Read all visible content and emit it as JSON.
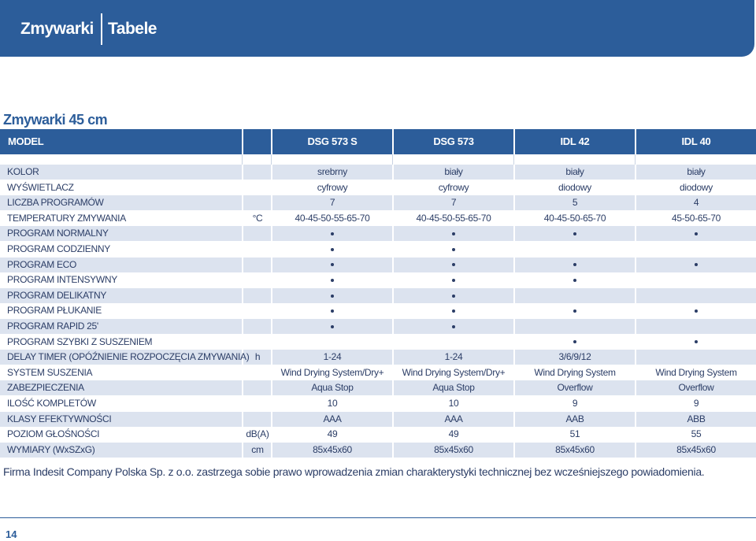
{
  "header": {
    "title_left": "Zmywarki",
    "title_right": "Tabele"
  },
  "section_title": "Zmywarki 45 cm",
  "table": {
    "columns": [
      "MODEL",
      "DSG 573 S",
      "DSG 573",
      "IDL 42",
      "IDL 40"
    ],
    "rows": [
      {
        "label": "KOLOR",
        "unit": "",
        "values": [
          "srebrny",
          "biały",
          "biały",
          "biały"
        ]
      },
      {
        "label": "WYŚWIETLACZ",
        "unit": "",
        "values": [
          "cyfrowy",
          "cyfrowy",
          "diodowy",
          "diodowy"
        ]
      },
      {
        "label": "LICZBA PROGRAMÓW",
        "unit": "",
        "values": [
          "7",
          "7",
          "5",
          "4"
        ]
      },
      {
        "label": "TEMPERATURY ZMYWANIA",
        "unit": "°C",
        "values": [
          "40-45-50-55-65-70",
          "40-45-50-55-65-70",
          "40-45-50-65-70",
          "45-50-65-70"
        ]
      },
      {
        "label": "PROGRAM NORMALNY",
        "unit": "",
        "values": [
          "•",
          "•",
          "•",
          "•"
        ]
      },
      {
        "label": "PROGRAM CODZIENNY",
        "unit": "",
        "values": [
          "•",
          "•",
          "",
          ""
        ]
      },
      {
        "label": "PROGRAM ECO",
        "unit": "",
        "values": [
          "•",
          "•",
          "•",
          "•"
        ]
      },
      {
        "label": "PROGRAM INTENSYWNY",
        "unit": "",
        "values": [
          "•",
          "•",
          "•",
          ""
        ]
      },
      {
        "label": "PROGRAM DELIKATNY",
        "unit": "",
        "values": [
          "•",
          "•",
          "",
          ""
        ]
      },
      {
        "label": "PROGRAM PŁUKANIE",
        "unit": "",
        "values": [
          "•",
          "•",
          "•",
          "•"
        ]
      },
      {
        "label": "PROGRAM RAPID 25'",
        "unit": "",
        "values": [
          "•",
          "•",
          "",
          ""
        ]
      },
      {
        "label": "PROGRAM SZYBKI Z SUSZENIEM",
        "unit": "",
        "values": [
          "",
          "",
          "•",
          "•"
        ]
      },
      {
        "label": "DELAY TIMER (OPÓŹNIENIE ROZPOCZĘCIA ZMYWANIA)",
        "unit": "h",
        "values": [
          "1-24",
          "1-24",
          "3/6/9/12",
          ""
        ]
      },
      {
        "label": "SYSTEM SUSZENIA",
        "unit": "",
        "values": [
          "Wind Drying System/Dry+",
          "Wind Drying System/Dry+",
          "Wind Drying System",
          "Wind Drying System"
        ]
      },
      {
        "label": "ZABEZPIECZENIA",
        "unit": "",
        "values": [
          "Aqua Stop",
          "Aqua Stop",
          "Overflow",
          "Overflow"
        ]
      },
      {
        "label": "ILOŚĆ KOMPLETÓW",
        "unit": "",
        "values": [
          "10",
          "10",
          "9",
          "9"
        ]
      },
      {
        "label": "KLASY EFEKTYWNOŚCI",
        "unit": "",
        "values": [
          "AAA",
          "AAA",
          "AAB",
          "ABB"
        ]
      },
      {
        "label": "POZIOM GŁOŚNOŚCI",
        "unit": "dB(A)",
        "values": [
          "49",
          "49",
          "51",
          "55"
        ]
      },
      {
        "label": "WYMIARY (WxSZxG)",
        "unit": "cm",
        "values": [
          "85x45x60",
          "85x45x60",
          "85x45x60",
          "85x45x60"
        ]
      }
    ]
  },
  "footnote": "Firma Indesit Company Polska Sp. z o.o. zastrzega sobie prawo wprowadzenia zmian charakterystyki technicznej bez wcześniejszego powiadomienia.",
  "page_number": "14",
  "colors": {
    "accent": "#2c5d9a",
    "row_shade": "#dce3ef",
    "text": "#2b3d66"
  }
}
